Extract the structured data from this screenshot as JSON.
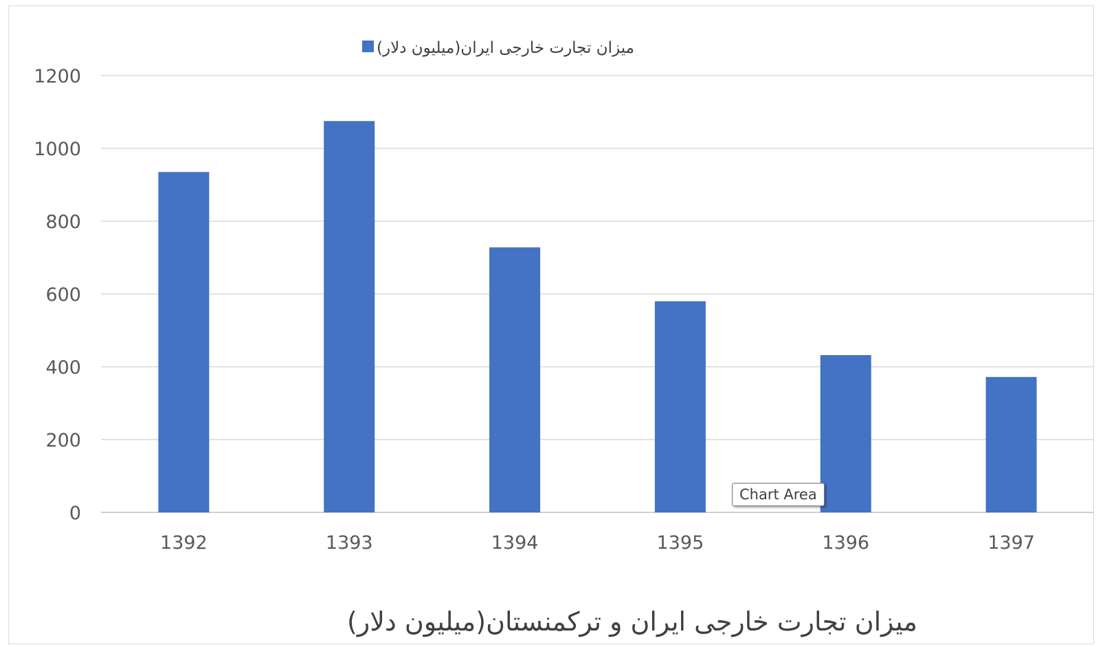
{
  "chart_data": {
    "type": "bar",
    "title": "میزان تجارت خارجی ایران و ترکمنستان(میلیون دلار)",
    "categories": [
      "1392",
      "1393",
      "1394",
      "1395",
      "1396",
      "1397"
    ],
    "series": [
      {
        "name": "میزان تجارت خارجی ایران(میلیون دلار)",
        "values": [
          935,
          1075,
          728,
          580,
          432,
          372
        ],
        "color": "#4472C4"
      }
    ],
    "ylim": [
      0,
      1200
    ],
    "yticks": [
      0,
      200,
      400,
      600,
      800,
      1000,
      1200
    ],
    "grid": true,
    "legend": "top"
  },
  "tooltip": {
    "text": "Chart Area"
  },
  "colors": {
    "bar": "#4472C4",
    "gridline": "#d9d9d9",
    "axis": "#bfbfbf"
  }
}
